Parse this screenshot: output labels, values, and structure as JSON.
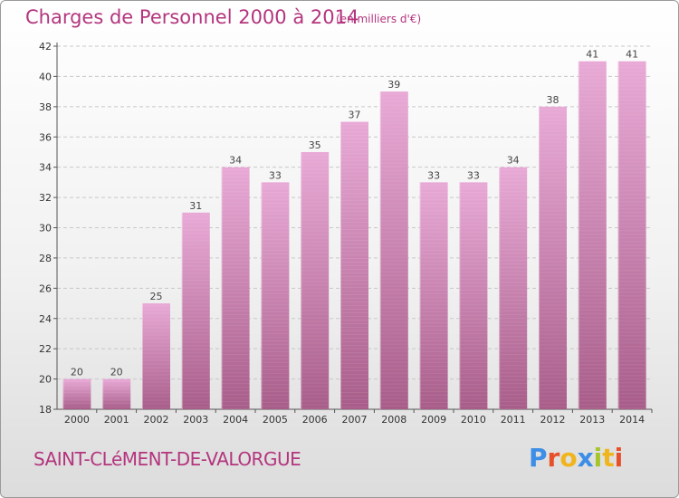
{
  "header": {
    "title": "Charges de Personnel 2000 à 2014",
    "subtitle": "(en milliers d'€)"
  },
  "footer": {
    "commune": "SAINT-CLéMENT-DE-VALORGUE",
    "logo_text": "Proxiti"
  },
  "colors": {
    "accent": "#b4357e",
    "bar_light": "#e8a9d6",
    "bar_dark": "#a85d89",
    "logo": [
      "#3d8ee6",
      "#e8502a",
      "#f0b51c",
      "#3d8ee6",
      "#a6c52a",
      "#f0b51c",
      "#e8502a"
    ]
  },
  "chart_data": {
    "type": "bar",
    "title": "Charges de Personnel 2000 à 2014",
    "subtitle": "(en milliers d'€)",
    "categories": [
      "2000",
      "2001",
      "2002",
      "2003",
      "2004",
      "2005",
      "2006",
      "2007",
      "2008",
      "2009",
      "2010",
      "2011",
      "2012",
      "2013",
      "2014"
    ],
    "values": [
      20,
      20,
      25,
      31,
      34,
      33,
      35,
      37,
      39,
      33,
      33,
      34,
      38,
      41,
      41
    ],
    "ylim": [
      18,
      42
    ],
    "yticks": [
      18,
      20,
      22,
      24,
      26,
      28,
      30,
      32,
      34,
      36,
      38,
      40,
      42
    ],
    "grid": true,
    "data_labels": true
  }
}
